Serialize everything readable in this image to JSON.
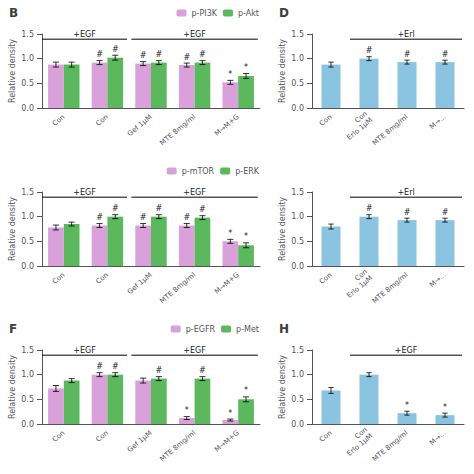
{
  "chart_data": [
    {
      "type": "bar",
      "title": "B",
      "categories": [
        "Con",
        "Con",
        "Gef 1μM",
        "MTE 8mg/ml",
        "M→M+G"
      ],
      "series": [
        {
          "name": "p-PI3K",
          "color": "#d9a0d9",
          "values": [
            0.88,
            0.92,
            0.9,
            0.87,
            0.52
          ],
          "errors": [
            0.05,
            0.04,
            0.04,
            0.04,
            0.04
          ],
          "marks": [
            null,
            "#",
            "#",
            "#",
            "*"
          ]
        },
        {
          "name": "p-Akt",
          "color": "#5cb85c",
          "values": [
            0.88,
            1.02,
            0.92,
            0.92,
            0.65
          ],
          "errors": [
            0.05,
            0.05,
            0.04,
            0.04,
            0.05
          ],
          "marks": [
            null,
            "#",
            "#",
            "#",
            "*"
          ]
        }
      ],
      "ylabel": "Relative density",
      "ylim": [
        0.0,
        1.5
      ],
      "yticks": [
        {
          "value": 0.0,
          "label": "0.0"
        },
        0.5,
        {
          "value": 1.0,
          "label": "1.0"
        },
        1.5
      ],
      "annotations": [
        "+EGF",
        "+EGF"
      ],
      "legend": "upper right",
      "grid": false
    },
    {
      "type": "bar",
      "categories": [
        "Con",
        "Con",
        "Gef 1μM",
        "MTE 8mg/ml",
        "M→M+G"
      ],
      "series": [
        {
          "name": "p-mTOR",
          "color": "#d9a0d9",
          "values": [
            0.78,
            0.82,
            0.82,
            0.82,
            0.5
          ],
          "errors": [
            0.05,
            0.04,
            0.04,
            0.04,
            0.04
          ],
          "marks": [
            null,
            "#",
            "#",
            "#",
            "*"
          ]
        },
        {
          "name": "p-ERK",
          "color": "#5cb85c",
          "values": [
            0.85,
            1.0,
            1.0,
            0.98,
            0.42
          ],
          "errors": [
            0.04,
            0.04,
            0.04,
            0.04,
            0.05
          ],
          "marks": [
            null,
            "#",
            "#",
            "#",
            "*"
          ]
        }
      ],
      "ylabel": "Relative density",
      "ylim": [
        0.0,
        1.5
      ],
      "yticks": [
        {
          "value": 0.0,
          "label": "0.0"
        },
        0.5,
        {
          "value": 1.0,
          "label": "1.0"
        },
        1.5
      ],
      "annotations": [
        "+EGF",
        "+EGF"
      ],
      "legend": "upper right",
      "grid": false
    },
    {
      "type": "bar",
      "title": "D",
      "categories": [
        "Con",
        "Con\nErlo 1μM",
        "MTE 8mg/ml",
        "M→..."
      ],
      "series": [
        {
          "color": "#8ac4e0",
          "values": [
            0.88,
            1.0,
            0.93,
            0.93
          ],
          "errors": [
            0.05,
            0.04,
            0.04,
            0.04
          ],
          "marks": [
            null,
            "#",
            "#",
            "#"
          ]
        }
      ],
      "ylabel": "Relative density",
      "ylim": [
        0.0,
        1.5
      ],
      "yticks": [
        {
          "value": 0.0,
          "label": "0.0"
        },
        0.5,
        {
          "value": 1.0,
          "label": "1.0"
        },
        1.5
      ],
      "annotations": [
        "+Erl"
      ],
      "grid": false
    },
    {
      "type": "bar",
      "categories": [
        "Con",
        "Con\nErlo 1μM",
        "MTE 8mg/ml",
        "M→..."
      ],
      "series": [
        {
          "color": "#8ac4e0",
          "values": [
            0.8,
            1.0,
            0.93,
            0.93
          ],
          "errors": [
            0.05,
            0.04,
            0.04,
            0.04
          ],
          "marks": [
            null,
            "#",
            "#",
            "#"
          ]
        }
      ],
      "ylabel": "Relative density",
      "ylim": [
        0.0,
        1.5
      ],
      "yticks": [
        {
          "value": 0.0,
          "label": "0.0"
        },
        0.5,
        {
          "value": 1.0,
          "label": "1.0"
        },
        1.5
      ],
      "annotations": [
        "+Erl"
      ],
      "grid": false
    },
    {
      "type": "bar",
      "title": "F",
      "categories": [
        "Con",
        "Con",
        "Gef 1μM",
        "MTE 8mg/ml",
        "M→M+G"
      ],
      "series": [
        {
          "name": "p-EGFR",
          "color": "#d9a0d9",
          "values": [
            0.72,
            1.0,
            0.88,
            0.12,
            0.08
          ],
          "errors": [
            0.06,
            0.04,
            0.05,
            0.03,
            0.02
          ],
          "marks": [
            null,
            "#",
            null,
            "*",
            "*"
          ]
        },
        {
          "name": "p-Met",
          "color": "#5cb85c",
          "values": [
            0.88,
            1.0,
            0.92,
            0.92,
            0.5
          ],
          "errors": [
            0.04,
            0.04,
            0.04,
            0.04,
            0.05
          ],
          "marks": [
            null,
            "#",
            "#",
            "#",
            "*"
          ]
        }
      ],
      "ylabel": "Relative density",
      "ylim": [
        0.0,
        1.5
      ],
      "yticks": [
        {
          "value": 0.0,
          "label": "0.0"
        },
        0.5,
        {
          "value": 1.0,
          "label": "1.0"
        },
        1.5
      ],
      "annotations": [
        "+EGF",
        "+EGF"
      ],
      "legend": "upper right",
      "grid": false
    },
    {
      "type": "bar",
      "title": "H",
      "categories": [
        "Con",
        "Con\nErlo 1μM",
        "MTE 8mg/ml",
        "M→..."
      ],
      "series": [
        {
          "color": "#8ac4e0",
          "values": [
            0.68,
            1.0,
            0.22,
            0.18
          ],
          "errors": [
            0.06,
            0.04,
            0.04,
            0.04
          ],
          "marks": [
            null,
            null,
            "*",
            "*"
          ]
        }
      ],
      "ylabel": "Relative density",
      "ylim": [
        0.0,
        1.5
      ],
      "yticks": [
        {
          "value": 0.0,
          "label": "0.0"
        },
        0.5,
        {
          "value": 1.0,
          "label": "1.0"
        },
        1.5
      ],
      "annotations": [
        "+EGF"
      ],
      "grid": false
    }
  ]
}
